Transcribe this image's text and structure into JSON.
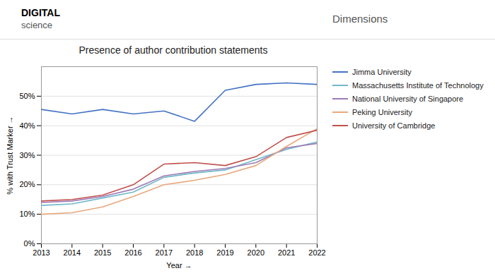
{
  "chart_data": {
    "type": "line",
    "title": "Presence of author contribution statements",
    "xlabel": "Year",
    "ylabel": "% with Trust Marker",
    "annotations": [
      "DIGITAL",
      "science",
      "Dimensions"
    ],
    "x": [
      2013,
      2014,
      2015,
      2016,
      2017,
      2018,
      2019,
      2020,
      2021,
      2022
    ],
    "series": [
      {
        "name": "Jimma University",
        "color": "#4472C4",
        "values": [
          45.5,
          44.0,
          45.5,
          44.0,
          45.0,
          41.5,
          52.0,
          54.0,
          54.5,
          54.0
        ]
      },
      {
        "name": "Massachusetts Institute of Technology",
        "color": "#70B8C8",
        "values": [
          13.0,
          13.5,
          15.5,
          17.5,
          22.5,
          24.0,
          25.0,
          28.5,
          32.0,
          34.5
        ]
      },
      {
        "name": "National University of Singapore",
        "color": "#9E7BB5",
        "values": [
          14.0,
          14.5,
          16.0,
          18.5,
          23.0,
          24.5,
          25.5,
          27.5,
          32.5,
          34.0
        ]
      },
      {
        "name": "Peking University",
        "color": "#E8A87C",
        "values": [
          10.0,
          10.5,
          12.5,
          16.0,
          20.0,
          21.5,
          23.5,
          26.5,
          33.0,
          39.0
        ]
      },
      {
        "name": "University of Cambridge",
        "color": "#C0504D",
        "values": [
          14.5,
          15.0,
          16.5,
          20.0,
          27.0,
          27.5,
          26.5,
          29.5,
          36.0,
          38.5
        ]
      }
    ],
    "xlim": [
      2013,
      2022
    ],
    "xticks": [
      2013,
      2014,
      2015,
      2016,
      2017,
      2018,
      2019,
      2020,
      2021,
      2022
    ],
    "ylim": [
      0,
      60
    ],
    "yticks": [
      {
        "value": 0,
        "label": "0%"
      },
      {
        "value": 10,
        "label": "10%"
      },
      {
        "value": 20,
        "label": "20%"
      },
      {
        "value": 30,
        "label": "30%"
      },
      {
        "value": 40,
        "label": "40%"
      },
      {
        "value": 50,
        "label": "50%"
      }
    ],
    "grid": true,
    "legend": "right"
  }
}
